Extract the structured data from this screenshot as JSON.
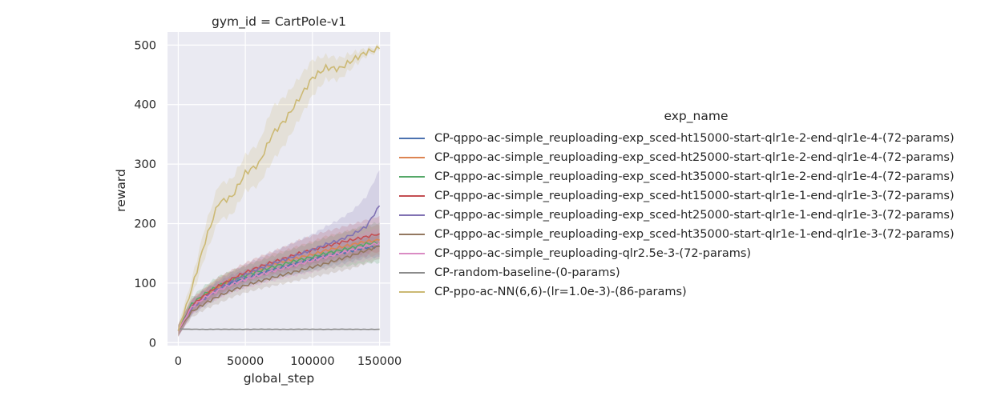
{
  "chart_data": {
    "type": "line",
    "title": "gym_id = CartPole-v1",
    "xlabel": "global_step",
    "ylabel": "reward",
    "xlim": [
      -8000,
      158000
    ],
    "ylim": [
      -5,
      522
    ],
    "xticks": [
      0,
      50000,
      100000,
      150000
    ],
    "yticks": [
      0,
      100,
      200,
      300,
      400,
      500
    ],
    "grid": true,
    "background": "#eaeaf2",
    "legend": {
      "title": "exp_name",
      "placement": "right, outside"
    },
    "x": [
      0,
      10000,
      20000,
      30000,
      40000,
      50000,
      60000,
      70000,
      80000,
      90000,
      100000,
      110000,
      120000,
      130000,
      140000,
      150000
    ],
    "series": [
      {
        "name": "CP-qppo-ac-simple_reuploading-exp_sced-ht15000-start-qlr1e-2-end-qlr1e-4-(72-params)",
        "color": "#4c72b0",
        "values": [
          20,
          60,
          78,
          90,
          100,
          108,
          115,
          122,
          128,
          134,
          140,
          146,
          150,
          155,
          160,
          162
        ],
        "band": [
          10,
          12,
          12,
          12,
          14,
          14,
          15,
          16,
          16,
          18,
          18,
          18,
          18,
          18,
          18,
          18
        ]
      },
      {
        "name": "CP-qppo-ac-simple_reuploading-exp_sced-ht25000-start-qlr1e-2-end-qlr1e-4-(72-params)",
        "color": "#dd8452",
        "values": [
          20,
          60,
          80,
          95,
          106,
          115,
          123,
          131,
          137,
          143,
          148,
          155,
          160,
          165,
          170,
          172
        ],
        "band": [
          10,
          12,
          12,
          14,
          14,
          15,
          16,
          18,
          18,
          20,
          22,
          24,
          24,
          25,
          25,
          25
        ]
      },
      {
        "name": "CP-qppo-ac-simple_reuploading-exp_sced-ht35000-start-qlr1e-2-end-qlr1e-4-(72-params)",
        "color": "#55a868",
        "values": [
          20,
          65,
          82,
          96,
          105,
          113,
          120,
          127,
          133,
          139,
          144,
          150,
          155,
          160,
          166,
          168
        ],
        "band": [
          10,
          12,
          14,
          15,
          16,
          16,
          17,
          18,
          20,
          22,
          24,
          26,
          28,
          30,
          32,
          34
        ]
      },
      {
        "name": "CP-qppo-ac-simple_reuploading-exp_sced-ht15000-start-qlr1e-1-end-qlr1e-3-(72-params)",
        "color": "#c44e52",
        "values": [
          20,
          62,
          80,
          95,
          107,
          118,
          127,
          135,
          142,
          150,
          156,
          162,
          168,
          173,
          178,
          183
        ],
        "band": [
          10,
          12,
          12,
          14,
          15,
          16,
          17,
          18,
          20,
          22,
          24,
          25,
          25,
          26,
          28,
          30
        ]
      },
      {
        "name": "CP-qppo-ac-simple_reuploading-exp_sced-ht25000-start-qlr1e-1-end-qlr1e-3-(72-params)",
        "color": "#8172b3",
        "values": [
          20,
          58,
          75,
          90,
          103,
          114,
          124,
          132,
          140,
          148,
          156,
          165,
          172,
          182,
          195,
          230
        ],
        "band": [
          10,
          12,
          14,
          15,
          16,
          17,
          18,
          20,
          22,
          24,
          26,
          30,
          35,
          40,
          50,
          60
        ]
      },
      {
        "name": "CP-qppo-ac-simple_reuploading-exp_sced-ht35000-start-qlr1e-1-end-qlr1e-3-(72-params)",
        "color": "#937860",
        "values": [
          20,
          52,
          66,
          78,
          88,
          96,
          103,
          109,
          115,
          121,
          127,
          133,
          140,
          147,
          155,
          162
        ],
        "band": [
          8,
          10,
          10,
          12,
          12,
          12,
          13,
          14,
          15,
          16,
          17,
          18,
          20,
          22,
          22,
          22
        ]
      },
      {
        "name": "CP-qppo-ac-simple_reuploading-qlr2.5e-3-(72-params)",
        "color": "#da8bc3",
        "values": [
          20,
          60,
          76,
          88,
          98,
          106,
          113,
          120,
          126,
          132,
          138,
          144,
          150,
          156,
          162,
          168
        ],
        "band": [
          10,
          12,
          12,
          14,
          14,
          15,
          16,
          16,
          18,
          18,
          20,
          20,
          22,
          22,
          24,
          24
        ]
      },
      {
        "name": "CP-random-baseline-(0-params)",
        "color": "#8c8c8c",
        "values": [
          23,
          22.5,
          22.3,
          22.5,
          22.4,
          22.3,
          22.5,
          22.4,
          22.3,
          22.5,
          22.4,
          22.3,
          22.5,
          22.4,
          22.3,
          22.4
        ],
        "band": [
          1,
          1,
          1,
          1,
          1,
          1,
          1,
          1,
          1,
          1,
          1,
          1,
          1,
          1,
          1,
          1
        ]
      },
      {
        "name": "CP-ppo-ac-NN(6,6)-(lr=1.0e-3)-(86-params)",
        "color": "#ccb974",
        "values": [
          20,
          90,
          170,
          235,
          245,
          285,
          300,
          350,
          375,
          410,
          445,
          462,
          460,
          475,
          488,
          494
        ],
        "band": [
          10,
          15,
          25,
          30,
          30,
          30,
          35,
          45,
          40,
          35,
          30,
          20,
          18,
          12,
          6,
          4
        ]
      }
    ]
  }
}
